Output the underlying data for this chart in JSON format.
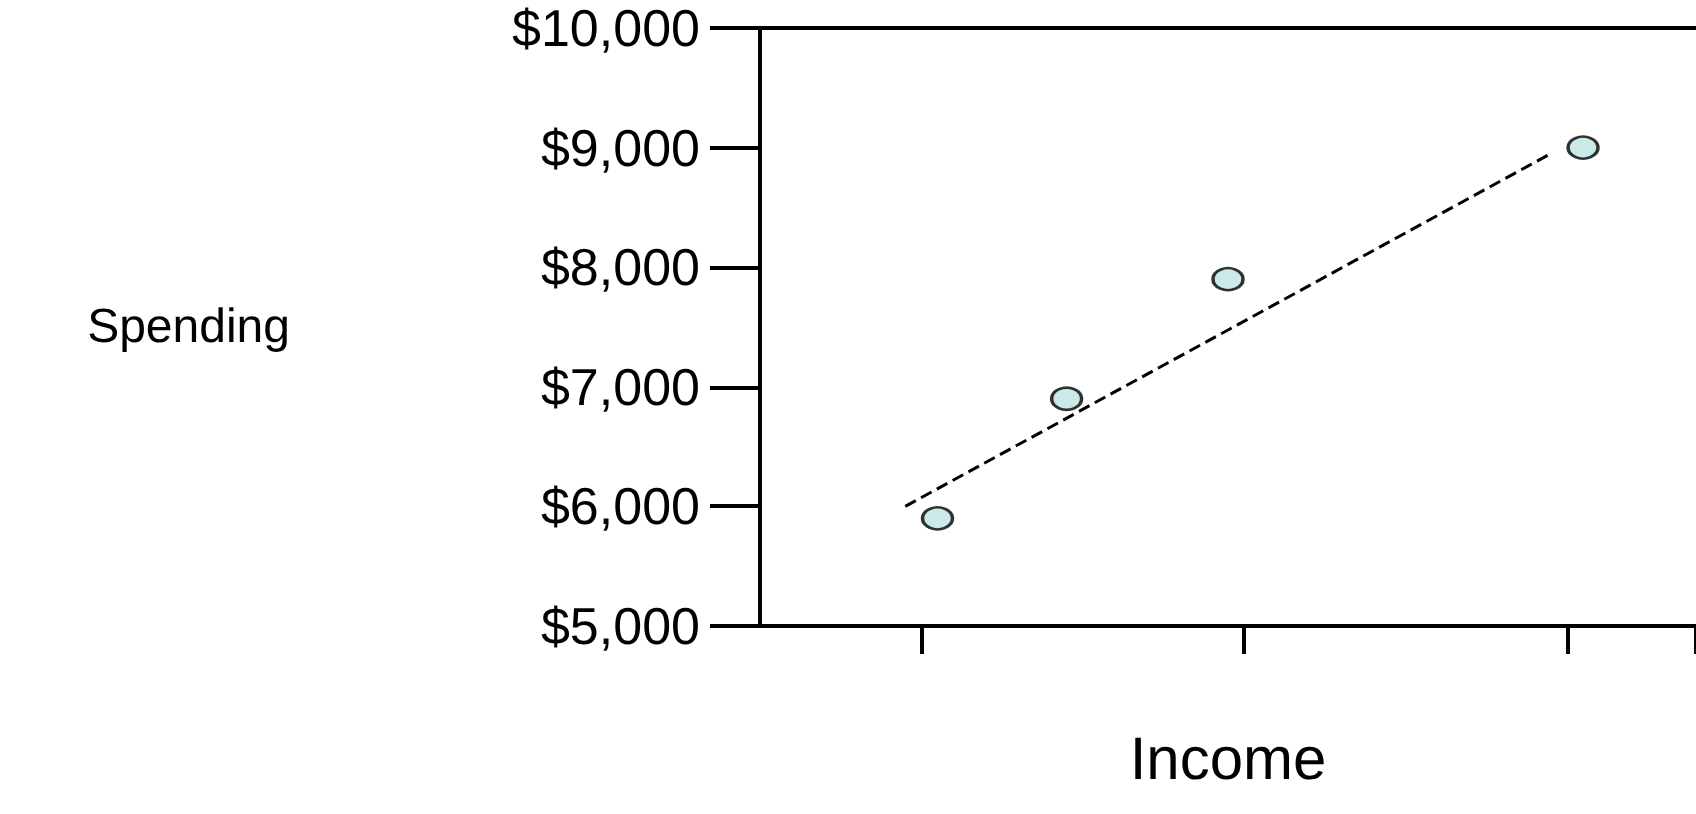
{
  "chart_data": {
    "type": "scatter",
    "xlabel": "Income",
    "ylabel": "Spending",
    "categories": [
      null,
      null,
      null,
      null,
      null,
      null,
      null,
      null,
      null,
      null,
      null,
      null,
      null,
      null,
      null,
      null,
      null,
      null,
      null,
      null,
      null,
      null,
      null,
      null,
      null,
      null,
      null,
      null,
      null
    ],
    "ylim": [
      5000,
      10000
    ],
    "yticks": [
      {
        "value": 5000,
        "label": "$5,000"
      },
      {
        "value": 6000,
        "label": "$6,000"
      },
      {
        "value": 7000,
        "label": "$7,000"
      },
      {
        "value": 8000,
        "label": "$8,000"
      },
      {
        "value": 9000,
        "label": "$9,000"
      },
      {
        "value": 10000,
        "label": "$10,000"
      }
    ],
    "grid": false,
    "marker": "circle",
    "series": [
      {
        "color": "#bfe3e3",
        "values": [
          null,
          null,
          null,
          null,
          null,
          5900,
          null,
          null,
          null,
          6900,
          null,
          null,
          null,
          null,
          7900,
          null,
          null,
          null,
          null,
          null,
          null,
          null,
          null,
          null,
          null,
          9000,
          null,
          null,
          null
        ]
      },
      {
        "type": "line",
        "color": "#000000",
        "values": [
          null,
          null,
          null,
          null,
          6000,
          null,
          null,
          null,
          null,
          null,
          null,
          null,
          null,
          null,
          null,
          null,
          null,
          null,
          null,
          null,
          null,
          null,
          null,
          null,
          8950,
          null,
          null,
          null,
          null
        ],
        "marker": "none",
        "line_style": "dashed"
      }
    ]
  }
}
